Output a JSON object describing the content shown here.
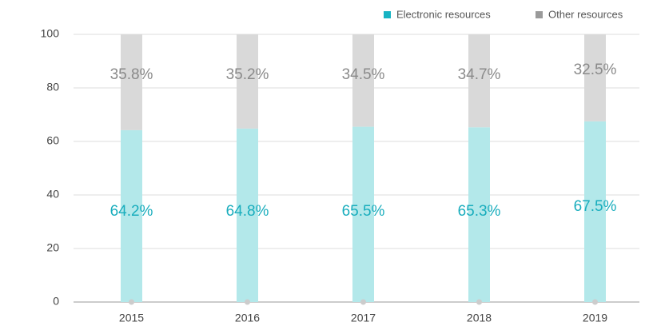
{
  "chart_data": {
    "type": "stacked_bar",
    "categories": [
      "2015",
      "2016",
      "2017",
      "2018",
      "2019"
    ],
    "series": [
      {
        "name": "Electronic resources",
        "color": "#b3e8ea",
        "legend_color": "#17b3c3",
        "label_color": "#19adbd",
        "values": [
          64.2,
          64.8,
          65.5,
          65.3,
          67.5
        ],
        "value_labels": [
          "64.2%",
          "64.8%",
          "65.5%",
          "65.3%",
          "67.5%"
        ]
      },
      {
        "name": "Other resources",
        "color": "#d9d9d9",
        "legend_color": "#9a9a9a",
        "label_color": "#8a8a8a",
        "values": [
          35.8,
          35.2,
          34.5,
          34.7,
          32.5
        ],
        "value_labels": [
          "35.8%",
          "35.2%",
          "34.5%",
          "34.7%",
          "32.5%"
        ]
      }
    ],
    "ylim": [
      0,
      100
    ],
    "yticks": [
      0,
      20,
      40,
      60,
      80,
      100
    ],
    "grid": true,
    "legend": "top-right"
  }
}
